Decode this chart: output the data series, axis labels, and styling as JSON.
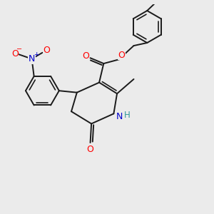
{
  "background_color": "#ebebeb",
  "bond_color": "#1a1a1a",
  "atom_colors": {
    "O": "#ff0000",
    "N": "#0000cc",
    "H": "#339999",
    "C": "#1a1a1a"
  },
  "lw": 1.4,
  "lw_inner": 1.2
}
